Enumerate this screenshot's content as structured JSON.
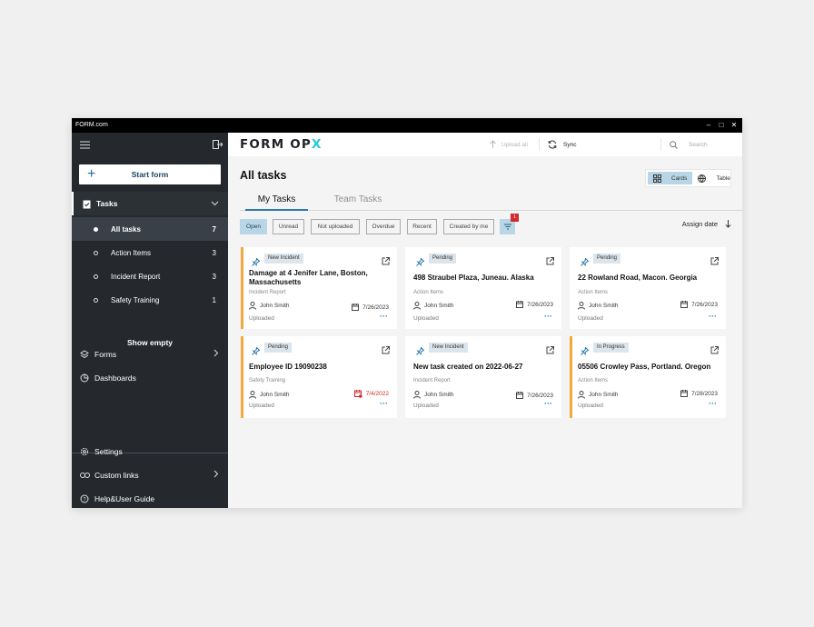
{
  "window": {
    "title": "FORM.com",
    "controls": [
      "–",
      "□",
      "✕"
    ]
  },
  "sidebar": {
    "start_form": "Start form",
    "tasks": {
      "label": "Tasks"
    },
    "sub_items": [
      {
        "label": "All tasks",
        "count": "7"
      },
      {
        "label": "Action Items",
        "count": "3"
      },
      {
        "label": "Incident Report",
        "count": "3"
      },
      {
        "label": "Safety Training",
        "count": "1"
      }
    ],
    "show_empty": "Show empty",
    "forms": "Forms",
    "dashboards": "Dashboards",
    "settings": "Settings",
    "custom_links": "Custom links",
    "help": "Help&User Guide"
  },
  "topbar": {
    "logo_main": "FORM OP",
    "logo_accent": "X",
    "upload_all": "Upload all",
    "sync": "Sync",
    "search_placeholder": "Search"
  },
  "main": {
    "title": "All tasks",
    "view_cards": "Cards",
    "view_table": "Table",
    "tabs": [
      "My Tasks",
      "Team Tasks"
    ],
    "filters": [
      "Open",
      "Unread",
      "Not uploaded",
      "Overdue",
      "Recent",
      "Created by me"
    ],
    "filter_count": "1",
    "sort_label": "Assign date"
  },
  "cards": [
    {
      "badge": "New Incident",
      "title": "Damage at 4 Jenifer Lane, Boston, Massachusetts",
      "type": "Incident Report",
      "user": "John Smith",
      "date": "7/26/2023",
      "status": "Uploaded"
    },
    {
      "badge": "Pending",
      "title": "498 Straubel Plaza, Juneau. Alaska",
      "type": "Action Items",
      "user": "John Smith",
      "date": "7/26/2023",
      "status": "Uploaded"
    },
    {
      "badge": "Pending",
      "title": "22 Rowland Road, Macon. Georgia",
      "type": "Action Items",
      "user": "John Smith",
      "date": "7/26/2023",
      "status": "Uploaded"
    },
    {
      "badge": "Pending",
      "title": "Employee ID 19090238",
      "type": "Safety Training",
      "user": "John Smith",
      "date": "7/4/2022",
      "status": "Uploaded"
    },
    {
      "badge": "New Incident",
      "title": "New task created on 2022-06-27",
      "type": "Incident Report",
      "user": "John Smith",
      "date": "7/26/2023",
      "status": "Uploaded"
    },
    {
      "badge": "In Progress",
      "title": "05506 Crowley Pass, Portland. Oregon",
      "type": "Action Items",
      "user": "John Smith",
      "date": "7/28/2023",
      "status": "Uploaded"
    }
  ],
  "colors": {
    "accent": "#2b78a8",
    "sidebar": "#25292e",
    "highlight": "#b8d6e6",
    "card_marker": "#f2a93b",
    "overdue": "#d12a2a",
    "logo_accent": "#20c9d8"
  }
}
